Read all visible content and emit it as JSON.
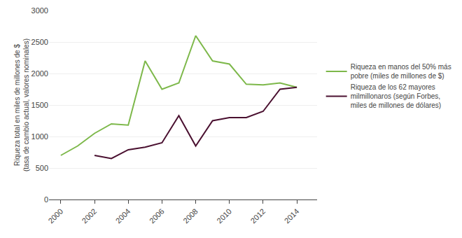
{
  "chart_data": {
    "type": "line",
    "x": [
      2000,
      2001,
      2002,
      2003,
      2004,
      2005,
      2006,
      2007,
      2008,
      2009,
      2010,
      2011,
      2012,
      2013,
      2014
    ],
    "series": [
      {
        "name": "Riqueza en manos del 50% más\npobre (miles de millones de $)",
        "color": "#7db84a",
        "values": [
          700,
          850,
          1050,
          1200,
          1180,
          2200,
          1750,
          1850,
          2600,
          2200,
          2150,
          1830,
          1820,
          1850,
          1780
        ]
      },
      {
        "name": "Riqueza de los 62 mayores\nmilmillonaros (según Forbes,\nmiles de millones de dólares)",
        "color": "#4a1030",
        "values": [
          null,
          null,
          700,
          650,
          790,
          830,
          900,
          1330,
          850,
          1250,
          1300,
          1300,
          1400,
          1750,
          1780
        ]
      }
    ],
    "ylabel": "Riqueza total en miles de millones de $\n(tasa de cambio actual, valores nominales)",
    "xlim": [
      1999.3,
      2015.2
    ],
    "ylim": [
      0,
      3000
    ],
    "xticks": [
      2000,
      2002,
      2004,
      2006,
      2008,
      2010,
      2012,
      2014
    ],
    "yticks": [
      0,
      500,
      1000,
      1500,
      2000,
      2500,
      3000
    ],
    "grid": "y",
    "legend": "right"
  }
}
